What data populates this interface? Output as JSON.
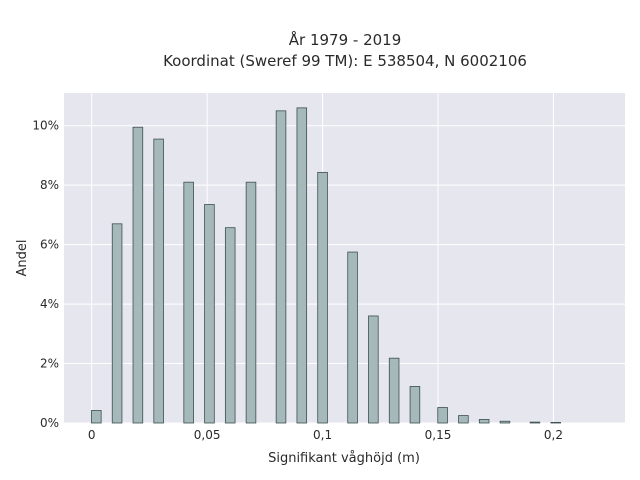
{
  "chart_data": {
    "type": "bar",
    "title_line1": "År 1979 - 2019",
    "title_line2": "Koordinat (Sweref 99 TM): E 538504, N 6002106",
    "xlabel": "Signifikant våghöjd (m)",
    "ylabel": "Andel",
    "xlim": [
      -0.012,
      0.231
    ],
    "ylim": [
      0,
      11.1
    ],
    "x_ticks": [
      {
        "value": 0,
        "label": "0"
      },
      {
        "value": 0.05,
        "label": "0,05"
      },
      {
        "value": 0.1,
        "label": "0,1"
      },
      {
        "value": 0.15,
        "label": "0,15"
      },
      {
        "value": 0.2,
        "label": "0,2"
      }
    ],
    "y_ticks": [
      {
        "value": 0,
        "label": "0%"
      },
      {
        "value": 2,
        "label": "2%"
      },
      {
        "value": 4,
        "label": "4%"
      },
      {
        "value": 6,
        "label": "6%"
      },
      {
        "value": 8,
        "label": "8%"
      },
      {
        "value": 10,
        "label": "10%"
      }
    ],
    "x": [
      0.002,
      0.011,
      0.02,
      0.029,
      0.042,
      0.051,
      0.06,
      0.069,
      0.082,
      0.091,
      0.1,
      0.113,
      0.122,
      0.131,
      0.14,
      0.152,
      0.161,
      0.17,
      0.179,
      0.192,
      0.201
    ],
    "values": [
      0.42,
      6.7,
      9.95,
      9.55,
      8.1,
      7.35,
      6.57,
      8.1,
      10.5,
      10.6,
      8.43,
      5.75,
      3.6,
      2.18,
      1.23,
      0.52,
      0.25,
      0.12,
      0.06,
      0.03,
      0.02
    ],
    "bar_width": 0.0042,
    "colors": {
      "bar_fill": "#a5b9ba",
      "bar_stroke": "#3d4f50",
      "plot_bg": "#e6e6ef",
      "grid": "#ffffff"
    },
    "grid": true
  }
}
